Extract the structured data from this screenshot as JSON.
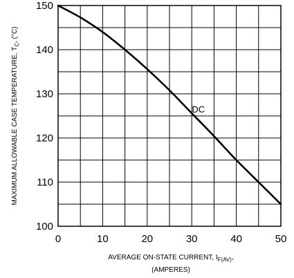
{
  "chart_data": {
    "type": "line",
    "xlabel_main": "AVERAGE ON-STATE  CURRENT, I",
    "xlabel_sub": "F(AV)",
    "xlabel_tail": ",",
    "xlabel_line2": "(AMPERES)",
    "ylabel_main": "MAXIMUM ALLOWABLE CASE TEMPERATURE, T",
    "ylabel_sub": "C",
    "ylabel_tail": ", (°C)",
    "xlim": [
      0,
      50
    ],
    "ylim": [
      100,
      150
    ],
    "x_ticks": [
      0,
      10,
      20,
      30,
      40,
      50
    ],
    "y_ticks": [
      100,
      110,
      120,
      130,
      140,
      150
    ],
    "x_grid_step": 5,
    "y_grid_step": 5,
    "grid": true,
    "series": [
      {
        "label": "DC",
        "label_at": [
          30.5,
          126.9
        ],
        "x": [
          0,
          5,
          10,
          15,
          20,
          25,
          30,
          35,
          40,
          45,
          50
        ],
        "y": [
          150,
          147.3,
          144.0,
          140.0,
          135.6,
          130.8,
          125.6,
          120.4,
          115.0,
          110.0,
          105.0
        ]
      }
    ]
  }
}
